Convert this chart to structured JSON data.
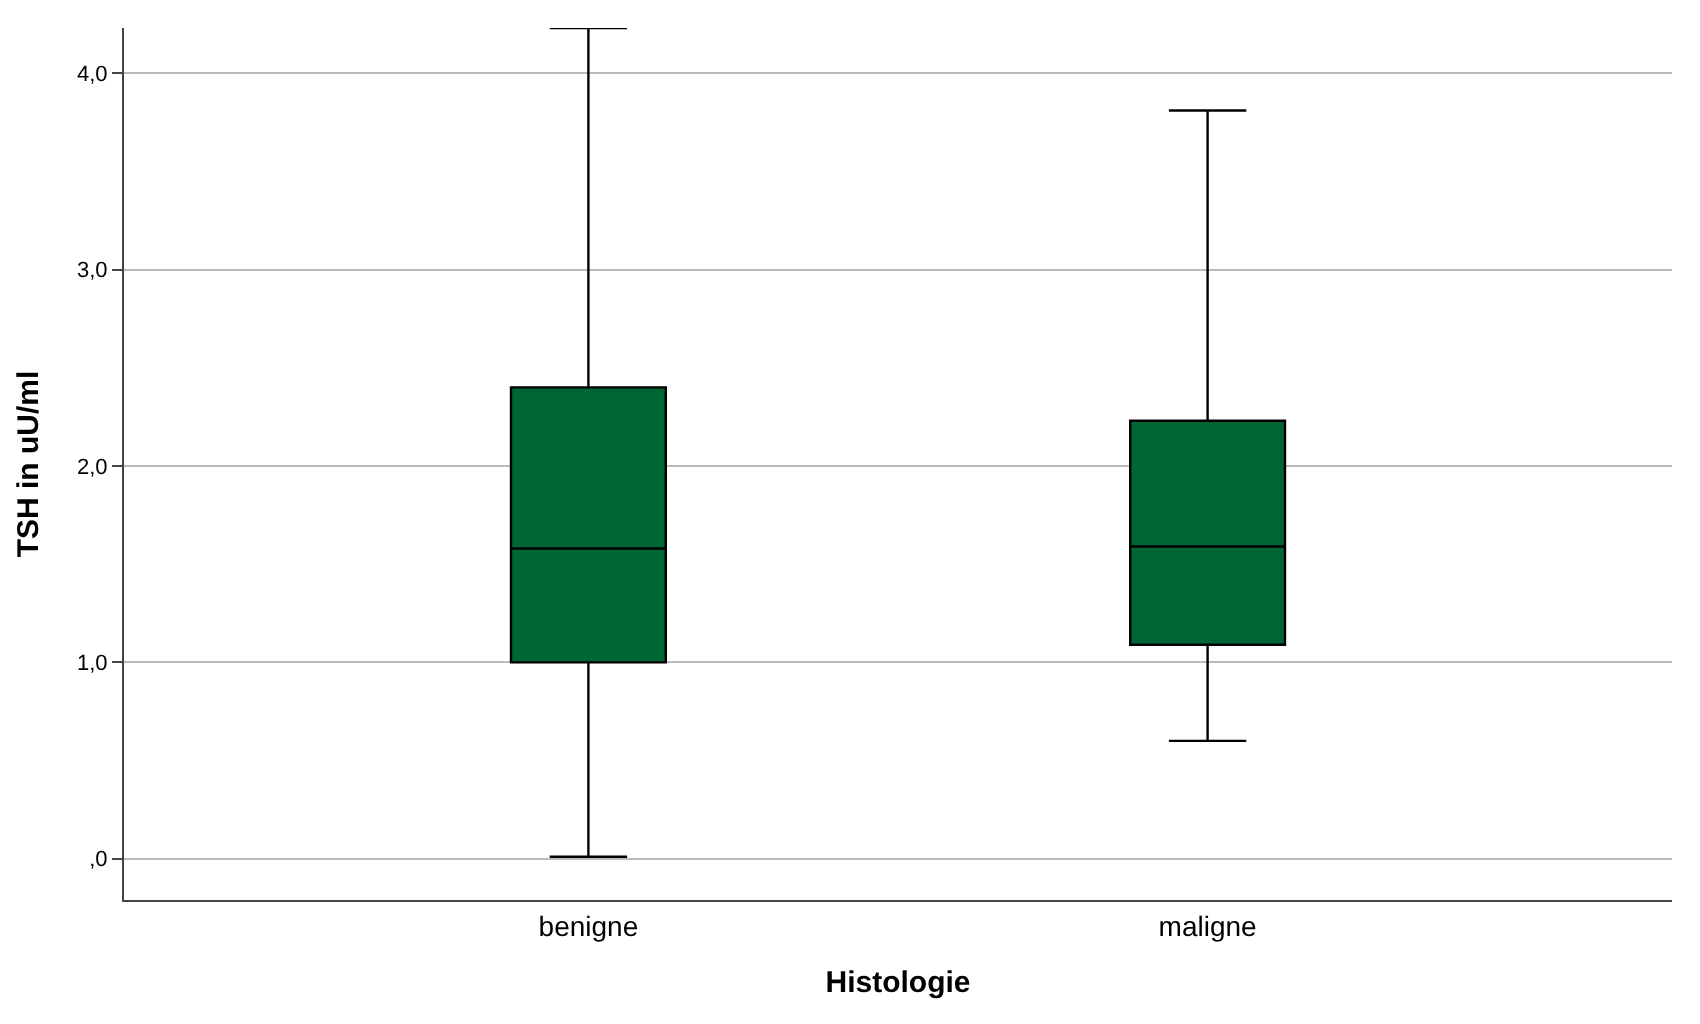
{
  "chart_data": {
    "type": "box",
    "xlabel": "Histologie",
    "ylabel": "TSH in uU/ml",
    "categories": [
      "benigne",
      "maligne"
    ],
    "boxes": [
      {
        "low": 0.01,
        "q1": 1.0,
        "median": 1.58,
        "q3": 2.4,
        "high": 4.23
      },
      {
        "low": 0.6,
        "q1": 1.09,
        "median": 1.59,
        "q3": 2.23,
        "high": 3.81
      }
    ],
    "color": "#006633",
    "ylim": [
      -0.21,
      4.23
    ],
    "yticks": [
      {
        "value": 0,
        "label": ",0"
      },
      {
        "value": 1,
        "label": "1,0"
      },
      {
        "value": 2,
        "label": "2,0"
      },
      {
        "value": 3,
        "label": "3,0"
      },
      {
        "value": 4,
        "label": "4,0"
      }
    ],
    "grid": "y"
  }
}
